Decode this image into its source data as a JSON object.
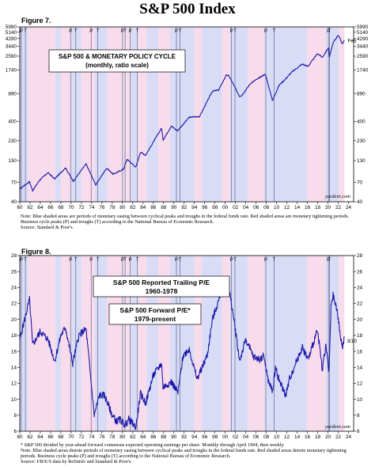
{
  "title": "S&P 500 Index",
  "colors": {
    "line": "#1a1aa8",
    "easing": "#d8dcf6",
    "tightening": "#f8dcec",
    "peak_trough_line": "#6a6a8a",
    "plot_border": "#000000"
  },
  "figure7": {
    "label": "Figure 7.",
    "watermark": "yardeni.com",
    "note": "Note: Blue shaded areas are periods of monetary easing between cyclical peaks and troughs in the federal funds rate. Red shaded areas are monetary tightening periods. Business cycle peaks (P) and troughs (T) according to the National Bureau of Economic Research.",
    "source": "Source: Standard & Poor's."
  },
  "figure8": {
    "label": "Figure 8.",
    "watermark": "yardeni.com",
    "note1": "* S&P 500 divided by year-ahead forward consensus expected operating earnings per share. Monthly through April 1994, then weekly.",
    "note2": "Note: Blue shaded areas denote periods of monetary easing between cyclical peaks and troughs in the federal funds rate. Red shaded areas denote monetary tightening periods. Business cycle peaks (P) and troughs (T) according to the National Bureau of Economic Research.",
    "source": "Source: I/B/E/S data by Refinitiv and Standard & Poor's."
  },
  "chart_data": [
    {
      "type": "line",
      "title": "S&P 500 & MONETARY POLICY CYCLE",
      "subtitle": "(monthly, ratio scale)",
      "scale": "log",
      "xlim": [
        1960,
        2025
      ],
      "ylim": [
        40,
        5990
      ],
      "x_tick_labels": [
        "60",
        "62",
        "64",
        "66",
        "68",
        "70",
        "72",
        "74",
        "76",
        "78",
        "80",
        "82",
        "84",
        "86",
        "88",
        "90",
        "92",
        "94",
        "96",
        "98",
        "00",
        "02",
        "04",
        "06",
        "08",
        "10",
        "12",
        "14",
        "16",
        "18",
        "20",
        "22",
        "24"
      ],
      "y_tick_labels": [
        "40",
        "70",
        "130",
        "230",
        "400",
        "890",
        "1740",
        "2590",
        "3440",
        "4290",
        "5140",
        "5990"
      ],
      "y_ticks": [
        40,
        70,
        130,
        230,
        400,
        890,
        1740,
        2590,
        3440,
        4290,
        5140,
        5990
      ],
      "end_annotation": "Feb",
      "business_cycle": [
        {
          "label": "P",
          "x": 1960.3
        },
        {
          "label": "T",
          "x": 1961.1
        },
        {
          "label": "P",
          "x": 1969.9
        },
        {
          "label": "T",
          "x": 1970.9
        },
        {
          "label": "P",
          "x": 1973.9
        },
        {
          "label": "T",
          "x": 1975.2
        },
        {
          "label": "P",
          "x": 1980.0
        },
        {
          "label": "T",
          "x": 1980.5
        },
        {
          "label": "P",
          "x": 1981.5
        },
        {
          "label": "T",
          "x": 1982.9
        },
        {
          "label": "P",
          "x": 1990.5
        },
        {
          "label": "T",
          "x": 1991.2
        },
        {
          "label": "P",
          "x": 2001.2
        },
        {
          "label": "T",
          "x": 2001.9
        },
        {
          "label": "P",
          "x": 2007.9
        },
        {
          "label": "T",
          "x": 2009.5
        },
        {
          "label": "P",
          "x": 2020.1
        },
        {
          "label": "T",
          "x": 2020.3
        }
      ],
      "easing_periods": [
        [
          1960.0,
          1961.6
        ],
        [
          1966.9,
          1968.0
        ],
        [
          1970.0,
          1972.0
        ],
        [
          1974.6,
          1977.0
        ],
        [
          1980.2,
          1980.6
        ],
        [
          1981.5,
          1983.0
        ],
        [
          1984.7,
          1987.0
        ],
        [
          1989.2,
          1994.0
        ],
        [
          1995.5,
          1999.4
        ],
        [
          2000.9,
          2004.4
        ],
        [
          2007.6,
          2015.9
        ],
        [
          2019.5,
          2022.1
        ]
      ],
      "tightening_periods": [
        [
          1961.6,
          1966.9
        ],
        [
          1968.0,
          1970.0
        ],
        [
          1972.0,
          1974.6
        ],
        [
          1977.0,
          1980.2
        ],
        [
          1980.6,
          1981.5
        ],
        [
          1983.0,
          1984.7
        ],
        [
          1987.0,
          1989.2
        ],
        [
          1994.0,
          1995.5
        ],
        [
          1999.4,
          2000.9
        ],
        [
          2004.4,
          2007.6
        ],
        [
          2015.9,
          2019.5
        ],
        [
          2022.1,
          2023.2
        ]
      ],
      "series": [
        {
          "points": [
            [
              1960.0,
              58
            ],
            [
              1961.9,
              71
            ],
            [
              1962.5,
              55
            ],
            [
              1963.9,
              75
            ],
            [
              1965.5,
              92
            ],
            [
              1966.8,
              77
            ],
            [
              1968.9,
              106
            ],
            [
              1970.4,
              72
            ],
            [
              1972.9,
              118
            ],
            [
              1974.8,
              65
            ],
            [
              1976.9,
              105
            ],
            [
              1978.2,
              88
            ],
            [
              1980.2,
              102
            ],
            [
              1980.9,
              135
            ],
            [
              1982.6,
              108
            ],
            [
              1983.5,
              166
            ],
            [
              1984.5,
              152
            ],
            [
              1987.6,
              330
            ],
            [
              1987.9,
              235
            ],
            [
              1989.5,
              350
            ],
            [
              1990.7,
              305
            ],
            [
              1993.0,
              450
            ],
            [
              1995.0,
              460
            ],
            [
              1997.5,
              950
            ],
            [
              1998.7,
              980
            ],
            [
              2000.2,
              1500
            ],
            [
              2000.7,
              1480
            ],
            [
              2002.8,
              820
            ],
            [
              2003.2,
              840
            ],
            [
              2005.0,
              1200
            ],
            [
              2007.8,
              1550
            ],
            [
              2009.2,
              730
            ],
            [
              2010.5,
              1130
            ],
            [
              2011.5,
              1300
            ],
            [
              2013.0,
              1650
            ],
            [
              2015.0,
              2070
            ],
            [
              2016.1,
              1930
            ],
            [
              2018.0,
              2800
            ],
            [
              2018.9,
              2500
            ],
            [
              2020.1,
              3300
            ],
            [
              2020.3,
              2550
            ],
            [
              2021.0,
              3800
            ],
            [
              2022.0,
              4750
            ],
            [
              2022.8,
              3700
            ],
            [
              2023.2,
              4100
            ]
          ]
        }
      ]
    },
    {
      "type": "line",
      "annotations": [
        "S&P 500 Reported Trailing P/E",
        "1960-1978",
        "S&P 500 Forward P/E*",
        "1979-present"
      ],
      "xlim": [
        1960,
        2025
      ],
      "ylim": [
        6,
        28
      ],
      "x_tick_labels": [
        "60",
        "62",
        "64",
        "66",
        "68",
        "70",
        "72",
        "74",
        "76",
        "78",
        "80",
        "82",
        "84",
        "86",
        "88",
        "90",
        "92",
        "94",
        "96",
        "98",
        "00",
        "02",
        "04",
        "06",
        "08",
        "10",
        "12",
        "14",
        "16",
        "18",
        "20",
        "22",
        "24"
      ],
      "y_tick_labels": [
        "6",
        "8",
        "10",
        "12",
        "14",
        "16",
        "18",
        "20",
        "22",
        "24",
        "26",
        "28"
      ],
      "y_ticks": [
        6,
        8,
        10,
        12,
        14,
        16,
        18,
        20,
        22,
        24,
        26,
        28
      ],
      "end_annotation": "3/10",
      "series": [
        {
          "points": [
            [
              1960.0,
              17.5
            ],
            [
              1961.9,
              22.5
            ],
            [
              1962.5,
              16.8
            ],
            [
              1964.0,
              18.5
            ],
            [
              1965.5,
              17.5
            ],
            [
              1966.8,
              14.8
            ],
            [
              1968.0,
              18.0
            ],
            [
              1968.9,
              19.0
            ],
            [
              1970.3,
              14.5
            ],
            [
              1971.5,
              18.0
            ],
            [
              1972.9,
              18.8
            ],
            [
              1974.5,
              8.0
            ],
            [
              1975.5,
              10.5
            ],
            [
              1976.5,
              10.5
            ],
            [
              1978.0,
              8.0
            ],
            [
              1978.9,
              7.2
            ],
            [
              1979.6,
              7.5
            ],
            [
              1980.5,
              6.7
            ],
            [
              1981.2,
              7.5
            ],
            [
              1982.6,
              6.5
            ],
            [
              1983.5,
              10.7
            ],
            [
              1984.5,
              9.5
            ],
            [
              1986.0,
              13.0
            ],
            [
              1987.6,
              14.5
            ],
            [
              1987.9,
              11.5
            ],
            [
              1989.5,
              12.2
            ],
            [
              1990.8,
              10.8
            ],
            [
              1991.8,
              15.5
            ],
            [
              1993.0,
              16.3
            ],
            [
              1994.5,
              12.5
            ],
            [
              1995.5,
              14.0
            ],
            [
              1996.5,
              15.5
            ],
            [
              1997.5,
              20.0
            ],
            [
              1998.8,
              22.5
            ],
            [
              1999.5,
              25.0
            ],
            [
              2000.2,
              24.5
            ],
            [
              2000.8,
              23.5
            ],
            [
              2001.7,
              20.0
            ],
            [
              2002.8,
              14.8
            ],
            [
              2004.0,
              17.5
            ],
            [
              2005.5,
              15.3
            ],
            [
              2006.8,
              15.0
            ],
            [
              2007.5,
              15.5
            ],
            [
              2008.3,
              12.5
            ],
            [
              2009.2,
              11.0
            ],
            [
              2009.8,
              14.0
            ],
            [
              2010.6,
              12.2
            ],
            [
              2011.8,
              10.5
            ],
            [
              2012.5,
              12.5
            ],
            [
              2014.0,
              15.0
            ],
            [
              2015.0,
              16.5
            ],
            [
              2016.2,
              15.0
            ],
            [
              2017.5,
              17.8
            ],
            [
              2018.0,
              18.5
            ],
            [
              2018.9,
              13.8
            ],
            [
              2019.6,
              16.8
            ],
            [
              2020.2,
              13.3
            ],
            [
              2020.6,
              21.5
            ],
            [
              2021.0,
              23.0
            ],
            [
              2021.8,
              21.0
            ],
            [
              2022.8,
              16.3
            ],
            [
              2023.2,
              17.8
            ]
          ]
        }
      ]
    }
  ]
}
